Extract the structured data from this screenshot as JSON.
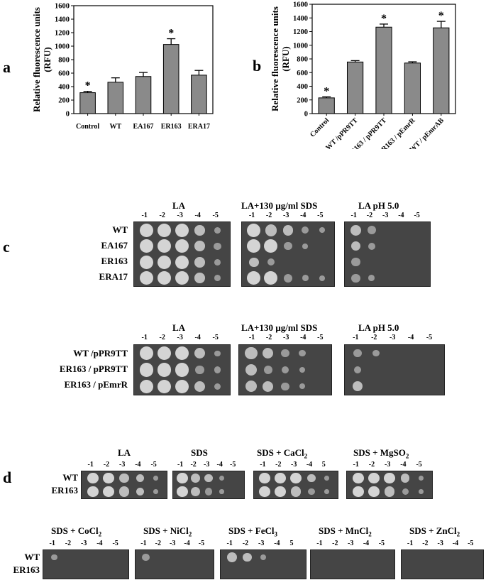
{
  "panels": {
    "a": "a",
    "b": "b",
    "c": "c",
    "d": "d"
  },
  "chart_data": [
    {
      "type": "bar",
      "ylabel": "Relative fluorescence units\n(RFU)",
      "ylabel_line1": "Relative fluorescence units",
      "ylabel_line2": "(RFU)",
      "categories": [
        "Control",
        "WT",
        "EA167",
        "ER163",
        "ERA17"
      ],
      "values": [
        310,
        465,
        550,
        1025,
        570
      ],
      "errors": [
        20,
        65,
        60,
        85,
        70
      ],
      "significant": [
        true,
        false,
        false,
        true,
        false
      ],
      "ylim": [
        0,
        1600
      ],
      "yticks": [
        0,
        200,
        400,
        600,
        800,
        1000,
        1200,
        1400,
        1600
      ],
      "star": "*",
      "bar_color": "#8a8a8a"
    },
    {
      "type": "bar",
      "ylabel": "Relative fluorescence units\n(RFU)",
      "ylabel_line1": "Relative fluorescence units",
      "ylabel_line2": "(RFU)",
      "categories": [
        "Control",
        "WT /pPR9TT",
        "ER163 / pPR9TT",
        "ER163 / pEmrR",
        "WT / pEmrAB"
      ],
      "values": [
        230,
        755,
        1265,
        740,
        1255
      ],
      "errors": [
        15,
        20,
        45,
        18,
        95
      ],
      "significant": [
        true,
        false,
        true,
        false,
        true
      ],
      "ylim": [
        0,
        1600
      ],
      "yticks": [
        0,
        200,
        400,
        600,
        800,
        1000,
        1200,
        1400,
        1600
      ],
      "star": "*",
      "bar_color": "#8a8a8a"
    }
  ],
  "panel_c": {
    "top": {
      "conditions": [
        "LA",
        "LA+130 µg/ml SDS",
        "LA pH 5.0"
      ],
      "dilutions": [
        "-1",
        "-2",
        "-3",
        "-4",
        "-5"
      ],
      "strains": [
        "WT",
        "EA167",
        "ER163",
        "ERA17"
      ]
    },
    "bottom": {
      "conditions": [
        "LA",
        "LA+130 µg/ml SDS",
        "LA pH 5.0"
      ],
      "dilutions": [
        "-1",
        "-2",
        "-3",
        "-4",
        "-5"
      ],
      "strains": [
        "WT /pPR9TT",
        "ER163 / pPR9TT",
        "ER163 / pEmrR"
      ]
    }
  },
  "panel_d": {
    "row1": {
      "conditions": [
        {
          "main": "LA",
          "sub": "",
          "tail": ""
        },
        {
          "main": "SDS",
          "sub": "",
          "tail": ""
        },
        {
          "main": "SDS + CaCl",
          "sub": "2",
          "tail": ""
        },
        {
          "main": "SDS + MgSO",
          "sub": "2",
          "tail": ""
        }
      ],
      "dilution_sets": [
        [
          "-1",
          "-2",
          "-3",
          "-4",
          "-5"
        ],
        [
          "-1",
          "-2",
          "-3",
          "-4",
          "-5"
        ],
        [
          "-1",
          "-2",
          "-3",
          "-4",
          "5"
        ],
        [
          "-1",
          "-2",
          "-3",
          "-4",
          "-5"
        ]
      ],
      "strains": [
        "WT",
        "ER163"
      ]
    },
    "row2": {
      "conditions": [
        {
          "main": "SDS + CoCl",
          "sub": "2",
          "tail": ""
        },
        {
          "main": "SDS + NiCl",
          "sub": "2",
          "tail": ""
        },
        {
          "main": "SDS + FeCl",
          "sub": "3",
          "tail": ""
        },
        {
          "main": "SDS + MnCl",
          "sub": "2",
          "tail": ""
        },
        {
          "main": "SDS + ZnCl",
          "sub": "2",
          "tail": ""
        }
      ],
      "dilution_sets": [
        [
          "-1",
          "-2",
          "-3",
          "-4",
          "-5"
        ],
        [
          "-1",
          "-2",
          "-3",
          "-4",
          "-5"
        ],
        [
          "-1",
          "-2",
          "-3",
          "-4",
          "5"
        ],
        [
          "-1",
          "-2",
          "-3",
          "-4",
          "-5"
        ],
        [
          "-1",
          "-2",
          "-3",
          "-4",
          "-5"
        ]
      ],
      "strains": [
        "WT",
        "ER163"
      ]
    }
  }
}
